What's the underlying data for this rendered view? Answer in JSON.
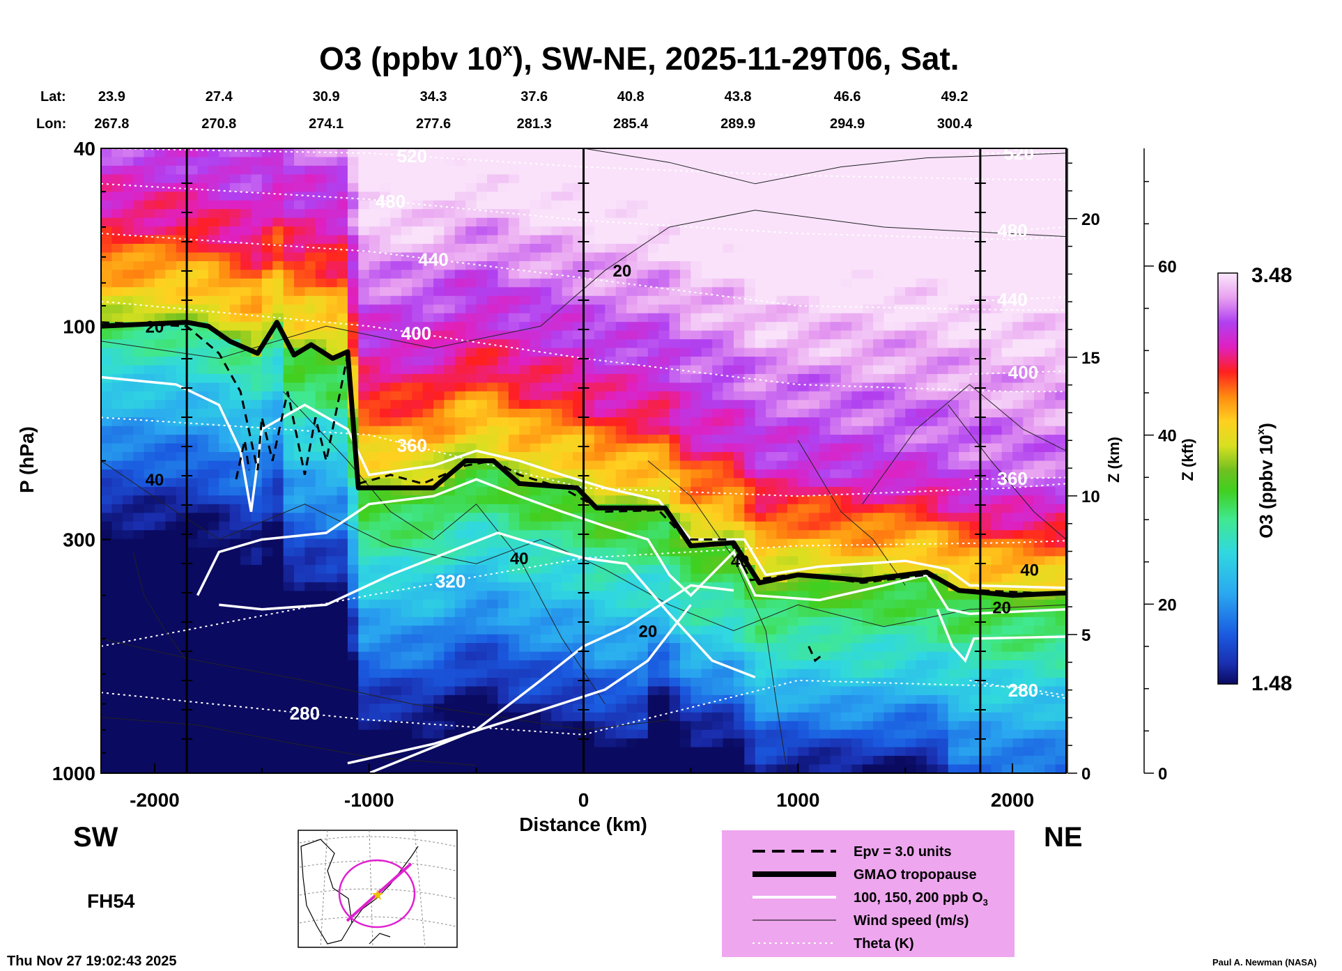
{
  "chart_data": {
    "type": "heatmap",
    "title_main": "O3 (ppbv 10",
    "title_sup": "x",
    "title_rest": "), SW-NE, 2025-11-29T06, Sat.",
    "lat_label": "Lat:",
    "lon_label": "Lon:",
    "locations": [
      {
        "x": -2200,
        "lat": "23.9",
        "lon": "267.8"
      },
      {
        "x": -1700,
        "lat": "27.4",
        "lon": "270.8"
      },
      {
        "x": -1200,
        "lat": "30.9",
        "lon": "274.1"
      },
      {
        "x": -700,
        "lat": "34.3",
        "lon": "277.6"
      },
      {
        "x": -230,
        "lat": "37.6",
        "lon": "281.3"
      },
      {
        "x": 220,
        "lat": "40.8",
        "lon": "285.4"
      },
      {
        "x": 720,
        "lat": "43.8",
        "lon": "289.9"
      },
      {
        "x": 1230,
        "lat": "46.6",
        "lon": "294.9"
      },
      {
        "x": 1730,
        "lat": "49.2",
        "lon": "300.4"
      }
    ],
    "xlabel": "Distance (km)",
    "xlim": [
      -2250,
      2250
    ],
    "xticks": [
      -2000,
      -1000,
      0,
      1000,
      2000
    ],
    "ylabel": "P (hPa)",
    "ylim": [
      1000,
      40
    ],
    "yscale": "log",
    "yticks": [
      40,
      100,
      300,
      1000
    ],
    "z_km_label": "Z (km)",
    "z_km_ticks": [
      0,
      5,
      10,
      15,
      20
    ],
    "z_kft_label": "Z (kft)",
    "z_kft_ticks": [
      0,
      20,
      40,
      60
    ],
    "colorbar": {
      "label": "O3 (ppbv 10",
      "label_sup": "x",
      "label_end": ")",
      "min": "1.48",
      "max": "3.48"
    },
    "vertical_lines_km": [
      -1850,
      0,
      1850
    ],
    "tropopause": [
      [
        -2250,
        100
      ],
      [
        -1850,
        98
      ],
      [
        -1750,
        100
      ],
      [
        -1650,
        108
      ],
      [
        -1520,
        115
      ],
      [
        -1430,
        98
      ],
      [
        -1350,
        116
      ],
      [
        -1270,
        110
      ],
      [
        -1170,
        118
      ],
      [
        -1100,
        114
      ],
      [
        -1050,
        230
      ],
      [
        -700,
        230
      ],
      [
        -550,
        200
      ],
      [
        -420,
        200
      ],
      [
        -300,
        225
      ],
      [
        -30,
        230
      ],
      [
        60,
        255
      ],
      [
        380,
        255
      ],
      [
        500,
        310
      ],
      [
        700,
        305
      ],
      [
        820,
        375
      ],
      [
        1000,
        360
      ],
      [
        1300,
        370
      ],
      [
        1600,
        355
      ],
      [
        1750,
        390
      ],
      [
        2000,
        400
      ],
      [
        2250,
        395
      ]
    ],
    "wind_labels": [
      {
        "text": "20",
        "x": 180,
        "p": 75
      },
      {
        "text": "20",
        "x": 300,
        "p": 480
      },
      {
        "text": "40",
        "x": -2000,
        "p": 220
      },
      {
        "text": "40",
        "x": -300,
        "p": 330
      },
      {
        "text": "40",
        "x": 730,
        "p": 335
      },
      {
        "text": "40",
        "x": 2080,
        "p": 350
      },
      {
        "text": "20",
        "x": 1950,
        "p": 425
      },
      {
        "text": "20",
        "x": -2000,
        "p": 100
      }
    ],
    "theta": [
      {
        "label": "280",
        "label_x": -1300,
        "pts": [
          [
            -2250,
            660
          ],
          [
            -1000,
            760
          ],
          [
            0,
            820
          ],
          [
            1000,
            620
          ],
          [
            2000,
            640
          ],
          [
            2250,
            670
          ]
        ]
      },
      {
        "label": "280",
        "label_x": 2050,
        "pts": [
          [
            1800,
            620
          ],
          [
            2250,
            680
          ]
        ]
      },
      {
        "label": "320",
        "label_x": -620,
        "pts": [
          [
            -2250,
            520
          ],
          [
            -1000,
            400
          ],
          [
            0,
            330
          ],
          [
            1000,
            310
          ],
          [
            2000,
            305
          ],
          [
            2250,
            302
          ]
        ]
      },
      {
        "label": "360",
        "label_x": -800,
        "pts": [
          [
            -2250,
            160
          ],
          [
            -1000,
            175
          ],
          [
            0,
            230
          ],
          [
            1000,
            240
          ],
          [
            2000,
            230
          ],
          [
            2250,
            225
          ]
        ]
      },
      {
        "label": "360",
        "label_x": 2000,
        "pts": [
          [
            1800,
            220
          ],
          [
            2250,
            218
          ]
        ]
      },
      {
        "label": "400",
        "label_x": -780,
        "pts": [
          [
            -2250,
            88
          ],
          [
            -1000,
            100
          ],
          [
            0,
            118
          ],
          [
            1000,
            135
          ],
          [
            2000,
            140
          ],
          [
            2250,
            140
          ]
        ]
      },
      {
        "label": "400",
        "label_x": 2050,
        "pts": [
          [
            1800,
            128
          ],
          [
            2250,
            126
          ]
        ]
      },
      {
        "label": "440",
        "label_x": -700,
        "pts": [
          [
            -2250,
            62
          ],
          [
            -1000,
            68
          ],
          [
            0,
            78
          ],
          [
            1000,
            90
          ],
          [
            2000,
            92
          ],
          [
            2250,
            92
          ]
        ]
      },
      {
        "label": "440",
        "label_x": 2000,
        "pts": [
          [
            1800,
            88
          ],
          [
            2250,
            86
          ]
        ]
      },
      {
        "label": "480",
        "label_x": -900,
        "pts": [
          [
            -2250,
            48
          ],
          [
            -1000,
            52
          ],
          [
            0,
            58
          ],
          [
            1000,
            62
          ],
          [
            2000,
            64
          ],
          [
            2250,
            63
          ]
        ]
      },
      {
        "label": "480",
        "label_x": 2000,
        "pts": [
          [
            1800,
            62
          ],
          [
            2250,
            60
          ]
        ]
      },
      {
        "label": "520",
        "label_x": -800,
        "pts": [
          [
            -2250,
            40
          ],
          [
            -1000,
            41
          ],
          [
            0,
            44
          ],
          [
            1000,
            46
          ],
          [
            2000,
            47
          ],
          [
            2250,
            47
          ]
        ]
      },
      {
        "label": "520",
        "label_x": 2030,
        "pts": [
          [
            1800,
            41
          ],
          [
            2250,
            41
          ]
        ]
      }
    ],
    "sw_label": "SW",
    "ne_label": "NE",
    "fh_label": "FH54",
    "legend": [
      {
        "style": "dashed",
        "text": "Epv = 3.0 units"
      },
      {
        "style": "thick",
        "text": "GMAO tropopause"
      },
      {
        "style": "white",
        "text": "100, 150, 200 ppb O",
        "sub": "3"
      },
      {
        "style": "thin",
        "text": "Wind speed (m/s)"
      },
      {
        "style": "dotted",
        "text": "Theta (K)"
      }
    ],
    "timestamp": "Thu Nov 27 19:02:43 2025",
    "credit": "Paul A. Newman (NASA)"
  }
}
